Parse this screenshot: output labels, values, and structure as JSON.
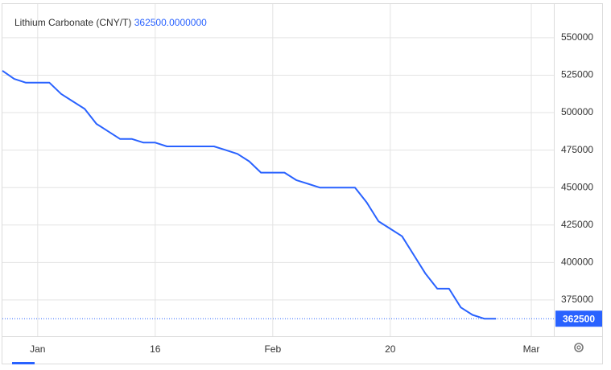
{
  "chart_data": {
    "type": "line",
    "title": "Lithium Carbonate (CNY/T)",
    "legend_value": {
      "value": 362500,
      "label": "362500.0000000"
    },
    "categories": [
      null,
      null,
      null,
      "Jan",
      null,
      null,
      null,
      null,
      null,
      null,
      null,
      null,
      null,
      "16",
      null,
      null,
      null,
      null,
      null,
      null,
      null,
      null,
      null,
      "Feb",
      null,
      null,
      null,
      null,
      null,
      null,
      null,
      null,
      null,
      "20",
      null,
      null,
      null,
      null,
      null,
      null,
      null,
      null,
      null,
      null,
      null,
      "Mar",
      null
    ],
    "values": [
      528000,
      522500,
      520000,
      520000,
      520000,
      512500,
      507500,
      502500,
      492500,
      487500,
      482500,
      482500,
      480000,
      480000,
      477500,
      477500,
      477500,
      477500,
      477500,
      475000,
      472500,
      467500,
      460000,
      460000,
      460000,
      455000,
      452500,
      450000,
      450000,
      450000,
      450000,
      440000,
      427500,
      422500,
      417500,
      405000,
      392500,
      382500,
      382500,
      370000,
      365000,
      362500,
      362500,
      null,
      null,
      null,
      null
    ],
    "color": "#2962ff",
    "ylim": [
      350800,
      572500
    ],
    "yticks": [
      375000,
      400000,
      425000,
      450000,
      475000,
      500000,
      525000,
      550000
    ],
    "grid": true
  }
}
